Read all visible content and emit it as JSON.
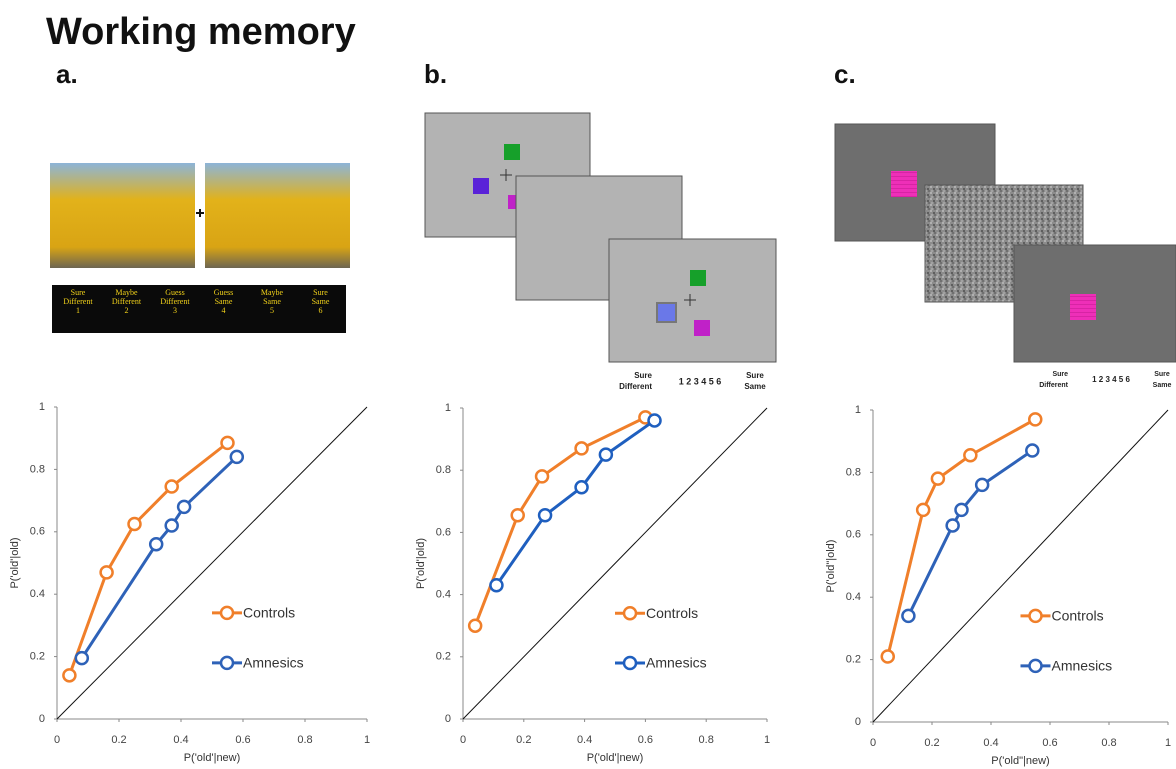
{
  "title": "Working memory",
  "panels": [
    {
      "label": "a.",
      "scale": [
        [
          "Sure",
          "Different",
          "1"
        ],
        [
          "Maybe",
          "Different",
          "2"
        ],
        [
          "Guess",
          "Different",
          "3"
        ],
        [
          "Guess",
          "Same",
          "4"
        ],
        [
          "Maybe",
          "Same",
          "5"
        ],
        [
          "Sure",
          "Same",
          "6"
        ]
      ]
    },
    {
      "label": "b.",
      "scale": {
        "left": [
          "Sure",
          "Different"
        ],
        "numbers": "1 2 3 4 5 6",
        "right": [
          "Sure",
          "Same"
        ]
      }
    },
    {
      "label": "c.",
      "scale": {
        "left": [
          "Sure",
          "Different"
        ],
        "numbers": "1 2 3 4 5 6",
        "right": [
          "Sure",
          "Same"
        ]
      }
    }
  ],
  "chart_data": [
    {
      "type": "line",
      "x_label": "P('old'|new)",
      "y_label": "P('old'|old)",
      "xlim": [
        0,
        1
      ],
      "ylim": [
        0,
        1
      ],
      "xticks": [
        0,
        0.2,
        0.4,
        0.6,
        0.8,
        1
      ],
      "yticks": [
        0,
        0.2,
        0.4,
        0.6,
        0.8,
        1
      ],
      "legend": "lower right",
      "series": [
        {
          "name": "Controls",
          "color": "#f07f2a",
          "x": [
            0.04,
            0.16,
            0.25,
            0.37,
            0.55
          ],
          "values": [
            0.14,
            0.47,
            0.625,
            0.745,
            0.885
          ]
        },
        {
          "name": "Amnesics",
          "color": "#2e62b8",
          "x": [
            0.08,
            0.32,
            0.37,
            0.41,
            0.58
          ],
          "values": [
            0.195,
            0.56,
            0.62,
            0.68,
            0.84
          ]
        }
      ]
    },
    {
      "type": "line",
      "x_label": "P('old'|new)",
      "y_label": "P('old'|old)",
      "xlim": [
        0,
        1
      ],
      "ylim": [
        0,
        1
      ],
      "xticks": [
        0,
        0.2,
        0.4,
        0.6,
        0.8,
        1
      ],
      "yticks": [
        0,
        0.2,
        0.4,
        0.6,
        0.8,
        1
      ],
      "legend": "lower right",
      "series": [
        {
          "name": "Controls",
          "color": "#f07f2a",
          "x": [
            0.04,
            0.18,
            0.26,
            0.39,
            0.6
          ],
          "values": [
            0.3,
            0.655,
            0.78,
            0.87,
            0.97
          ]
        },
        {
          "name": "Amnesics",
          "color": "#1f5fbf",
          "x": [
            0.11,
            0.27,
            0.39,
            0.47,
            0.63
          ],
          "values": [
            0.43,
            0.655,
            0.745,
            0.85,
            0.96
          ]
        }
      ]
    },
    {
      "type": "line",
      "x_label": "P('old\"|new)",
      "y_label": "P('old\"|old)",
      "xlim": [
        0,
        1
      ],
      "ylim": [
        0,
        1
      ],
      "xticks": [
        0,
        0.2,
        0.4,
        0.6,
        0.8,
        1
      ],
      "yticks": [
        0,
        0.2,
        0.4,
        0.6,
        0.8,
        1
      ],
      "legend": "lower right",
      "series": [
        {
          "name": "Controls",
          "color": "#f07f2a",
          "x": [
            0.05,
            0.17,
            0.22,
            0.33,
            0.55
          ],
          "values": [
            0.21,
            0.68,
            0.78,
            0.855,
            0.97
          ]
        },
        {
          "name": "Amnesics",
          "color": "#2e62b8",
          "x": [
            0.12,
            0.27,
            0.3,
            0.37,
            0.54
          ],
          "values": [
            0.34,
            0.63,
            0.68,
            0.76,
            0.87
          ]
        }
      ]
    }
  ]
}
